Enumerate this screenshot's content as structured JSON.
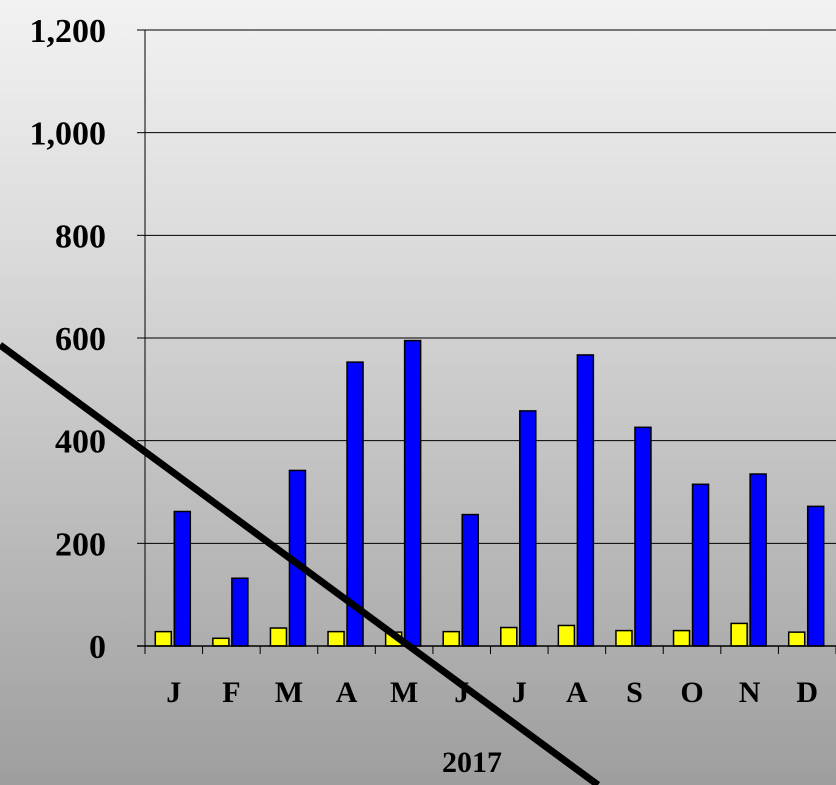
{
  "chart_data": {
    "type": "bar",
    "title": "",
    "xlabel": "2017",
    "ylabel": "",
    "ylim": [
      0,
      1200
    ],
    "yticks": [
      0,
      200,
      400,
      600,
      800,
      1000,
      1200
    ],
    "ytick_labels": [
      "0",
      "200",
      "400",
      "600",
      "800",
      "1,000",
      "1,200"
    ],
    "categories": [
      "J",
      "F",
      "M",
      "A",
      "M",
      "J",
      "J",
      "A",
      "S",
      "O",
      "N",
      "D"
    ],
    "grid": true,
    "legend": "none",
    "series": [
      {
        "color": "#ffff00",
        "values": [
          28,
          15,
          35,
          28,
          27,
          28,
          36,
          40,
          30,
          30,
          44,
          27
        ]
      },
      {
        "color": "#0000ff",
        "values": [
          262,
          132,
          342,
          553,
          595,
          256,
          458,
          567,
          426,
          315,
          335,
          272
        ]
      }
    ],
    "annotations": {
      "diagonal_line": {
        "description": "thick black diagonal line crossing the chart",
        "color": "#000000"
      }
    }
  }
}
